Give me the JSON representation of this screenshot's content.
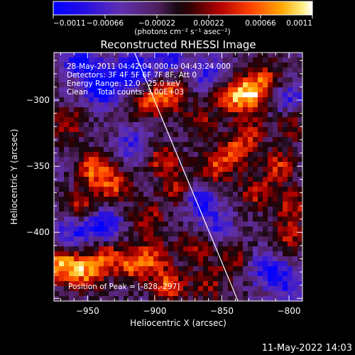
{
  "chart_data": {
    "type": "heatmap",
    "title": "Reconstructed RHESSI Image",
    "xlabel": "Heliocentric X (arcsec)",
    "ylabel": "Heliocentric Y (arcsec)",
    "xlim": [
      -975,
      -790
    ],
    "ylim": [
      -452,
      -264
    ],
    "x_ticks": [
      -950,
      -900,
      -850,
      -800
    ],
    "x_tick_labels": [
      "−950",
      "−900",
      "−850",
      "−800"
    ],
    "y_ticks": [
      -300,
      -350,
      -400
    ],
    "y_tick_labels": [
      "−300",
      "−350",
      "−400"
    ],
    "colorbar": {
      "range": [
        -0.0011,
        0.0011
      ],
      "ticks": [
        -0.0011,
        -0.00066,
        -0.00022,
        0.00022,
        0.00066,
        0.0011
      ],
      "tick_labels": [
        "−0.0011",
        "−0.00066",
        "−0.00022",
        "0.00022",
        "0.00066",
        "0.0011"
      ],
      "unit_label": "(photons cm⁻² s⁻¹ asec⁻²)"
    },
    "annotations": [
      "28-May-2011 04:42:04.000 to 04:43:24.000",
      "Detectors: 3F 4F 5F 6F 7F 8F, Att 0",
      "Energy Range: 12.0 - 25.0 keV",
      "Clean    Total counts: 3.00E+03"
    ],
    "peak_label": "Position of Peak = [-828,-297]",
    "limb_line": [
      [
        -915,
        -264
      ],
      [
        -838,
        -452
      ]
    ],
    "hotspots": [
      {
        "x": -829,
        "y": -296,
        "value": 0.0011
      },
      {
        "x": -845,
        "y": -297,
        "value": 0.00075
      },
      {
        "x": -887,
        "y": -296,
        "value": 0.0008
      },
      {
        "x": -905,
        "y": -301,
        "value": 0.0007
      },
      {
        "x": -818,
        "y": -282,
        "value": 0.0006
      },
      {
        "x": -798,
        "y": -318,
        "value": 0.0005
      },
      {
        "x": -965,
        "y": -318,
        "value": 0.0006
      },
      {
        "x": -945,
        "y": -352,
        "value": 0.0009
      },
      {
        "x": -930,
        "y": -365,
        "value": 0.0007
      },
      {
        "x": -955,
        "y": -380,
        "value": 0.0006
      },
      {
        "x": -895,
        "y": -345,
        "value": 0.0007
      },
      {
        "x": -882,
        "y": -368,
        "value": 0.00075
      },
      {
        "x": -905,
        "y": -390,
        "value": 0.0006
      },
      {
        "x": -855,
        "y": -352,
        "value": 0.0007
      },
      {
        "x": -840,
        "y": -340,
        "value": 0.00065
      },
      {
        "x": -825,
        "y": -370,
        "value": 0.0006
      },
      {
        "x": -830,
        "y": -325,
        "value": 0.0006
      },
      {
        "x": -808,
        "y": -350,
        "value": 0.0007
      },
      {
        "x": -798,
        "y": -380,
        "value": 0.0006
      },
      {
        "x": -800,
        "y": -405,
        "value": 0.0006
      },
      {
        "x": -865,
        "y": -318,
        "value": 0.0005
      },
      {
        "x": -968,
        "y": -425,
        "value": 0.0011
      },
      {
        "x": -950,
        "y": -430,
        "value": 0.0009
      },
      {
        "x": -935,
        "y": -418,
        "value": 0.0007
      },
      {
        "x": -915,
        "y": -425,
        "value": 0.0008
      },
      {
        "x": -890,
        "y": -440,
        "value": 0.0008
      },
      {
        "x": -900,
        "y": -418,
        "value": 0.0006
      },
      {
        "x": -870,
        "y": -410,
        "value": 0.0006
      },
      {
        "x": -860,
        "y": -440,
        "value": 0.0005
      },
      {
        "x": -842,
        "y": -420,
        "value": 0.0005
      }
    ],
    "coldspots": [
      {
        "x": -940,
        "y": -290,
        "value": -0.0011
      },
      {
        "x": -915,
        "y": -278,
        "value": -0.0009
      },
      {
        "x": -955,
        "y": -270,
        "value": -0.0008
      },
      {
        "x": -890,
        "y": -268,
        "value": -0.0006
      },
      {
        "x": -938,
        "y": -395,
        "value": -0.0008
      },
      {
        "x": -960,
        "y": -400,
        "value": -0.0006
      },
      {
        "x": -868,
        "y": -375,
        "value": -0.0008
      },
      {
        "x": -855,
        "y": -395,
        "value": -0.0005
      },
      {
        "x": -815,
        "y": -428,
        "value": -0.0007
      },
      {
        "x": -800,
        "y": -440,
        "value": -0.0005
      },
      {
        "x": -860,
        "y": -280,
        "value": -0.0006
      },
      {
        "x": -800,
        "y": -300,
        "value": -0.0005
      },
      {
        "x": -915,
        "y": -335,
        "value": -0.0005
      }
    ]
  },
  "footer": {
    "timestamp": "11-May-2022 14:03"
  }
}
